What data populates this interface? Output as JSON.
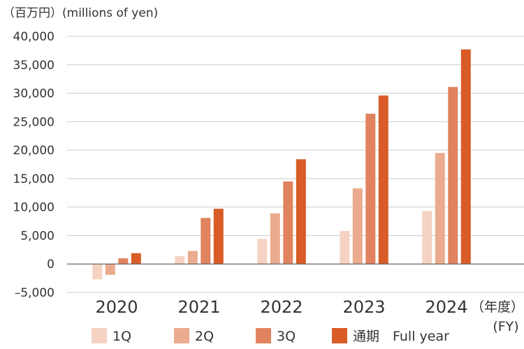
{
  "chart_data": {
    "type": "bar",
    "unit_label": "（百万円）(millions of yen)",
    "fy_label_line1": "（年度）",
    "fy_label_line2": "(FY)",
    "categories": [
      "2020",
      "2021",
      "2022",
      "2023",
      "2024"
    ],
    "series": [
      {
        "name": "1Q",
        "color": "#f6d2c2",
        "values": [
          -2700,
          1400,
          4400,
          5800,
          9300
        ]
      },
      {
        "name": "2Q",
        "color": "#ebab8e",
        "values": [
          -1900,
          2300,
          8900,
          13300,
          19500
        ]
      },
      {
        "name": "3Q",
        "color": "#e0835e",
        "values": [
          1000,
          8100,
          14500,
          26400,
          31100
        ]
      },
      {
        "name": "通期　Full year",
        "color": "#d95b27",
        "values": [
          1900,
          9700,
          18400,
          29600,
          37700
        ]
      }
    ],
    "ylim": [
      -5000,
      40000
    ],
    "yticks": [
      "40,000",
      "35,000",
      "30,000",
      "25,000",
      "20,000",
      "15,000",
      "10,000",
      "5,000",
      "0",
      "–5,000"
    ],
    "ytick_values": [
      40000,
      35000,
      30000,
      25000,
      20000,
      15000,
      10000,
      5000,
      0,
      -5000
    ],
    "grid": true,
    "legend_position": "bottom"
  }
}
